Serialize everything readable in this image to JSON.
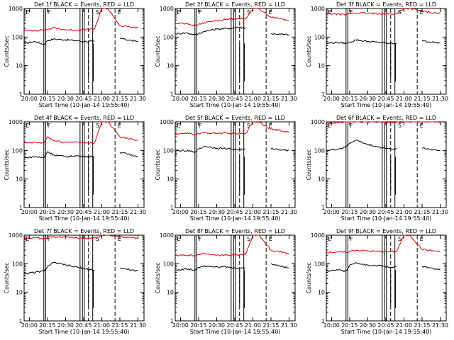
{
  "figure": {
    "start_time_label": "Start Time (10-Jan-14 19:55:40)",
    "ylabel": "Counts/sec"
  },
  "chart_data": [
    {
      "type": "line",
      "title": "Det 1f BLACK = Events, RED = LLD",
      "xlabel": "Start Time (10-Jan-14 19:55:40)",
      "ylabel": "Counts/sec",
      "yscale": "log",
      "ylim": [
        1,
        1000
      ],
      "x_ticks": [
        "20:00",
        "20:15",
        "20:30",
        "20:45",
        "21:00",
        "21:15",
        "21:30"
      ],
      "y_ticks": [
        "1",
        "10",
        "100",
        "1000"
      ],
      "x": [
        "19:56",
        "20:05",
        "20:12",
        "20:15",
        "20:20",
        "20:30",
        "20:40",
        "20:44",
        "20:47",
        "20:54",
        "21:00",
        "21:05",
        "21:15",
        "21:25",
        "21:30"
      ],
      "series": [
        {
          "name": "Events",
          "color": "#000000",
          "values": [
            60,
            70,
            55,
            75,
            85,
            80,
            75,
            70,
            70,
            70,
            null,
            null,
            90,
            75,
            70
          ]
        },
        {
          "name": "LLD",
          "color": "#e00000",
          "values": [
            170,
            170,
            180,
            185,
            210,
            180,
            175,
            180,
            185,
            190,
            1000,
            1000,
            250,
            220,
            210
          ]
        }
      ],
      "markers": [
        "E",
        "F",
        "S",
        "E"
      ]
    },
    {
      "type": "line",
      "title": "Det 2f BLACK = Events, RED = LLD",
      "xlabel": "Start Time (10-Jan-14 19:55:40)",
      "ylabel": "Counts/sec",
      "yscale": "log",
      "ylim": [
        1,
        1000
      ],
      "x_ticks": [
        "20:00",
        "20:15",
        "20:30",
        "20:45",
        "21:00",
        "21:15",
        "21:30"
      ],
      "y_ticks": [
        "1",
        "10",
        "100",
        "1000"
      ],
      "x": [
        "19:56",
        "20:05",
        "20:12",
        "20:15",
        "20:20",
        "20:30",
        "20:40",
        "20:44",
        "20:47",
        "20:54",
        "21:00",
        "21:05",
        "21:15",
        "21:25",
        "21:30"
      ],
      "series": [
        {
          "name": "Events",
          "color": "#000000",
          "values": [
            130,
            140,
            120,
            130,
            160,
            190,
            200,
            210,
            220,
            210,
            null,
            null,
            130,
            125,
            120
          ]
        },
        {
          "name": "LLD",
          "color": "#e00000",
          "values": [
            300,
            300,
            250,
            270,
            320,
            380,
            420,
            440,
            450,
            430,
            1000,
            1000,
            500,
            420,
            380
          ]
        }
      ],
      "markers": [
        "E",
        "F",
        "S",
        "E"
      ]
    },
    {
      "type": "line",
      "title": "Det 3f BLACK = Events, RED = LLD",
      "xlabel": "Start Time (10-Jan-14 19:55:40)",
      "ylabel": "Counts/sec",
      "yscale": "log",
      "ylim": [
        1,
        1000
      ],
      "x_ticks": [
        "20:00",
        "20:15",
        "20:30",
        "20:45",
        "21:00",
        "21:15",
        "21:30"
      ],
      "y_ticks": [
        "1",
        "10",
        "100",
        "1000"
      ],
      "x": [
        "19:56",
        "20:05",
        "20:12",
        "20:15",
        "20:20",
        "20:30",
        "20:40",
        "20:44",
        "20:47",
        "20:54",
        "21:00",
        "21:05",
        "21:15",
        "21:25",
        "21:30"
      ],
      "series": [
        {
          "name": "Events",
          "color": "#000000",
          "values": [
            60,
            65,
            60,
            65,
            80,
            70,
            65,
            62,
            60,
            60,
            null,
            null,
            75,
            65,
            62
          ]
        },
        {
          "name": "LLD",
          "color": "#e00000",
          "values": [
            650,
            640,
            600,
            650,
            700,
            680,
            660,
            650,
            640,
            650,
            1000,
            1000,
            800,
            700,
            680
          ]
        }
      ],
      "markers": [
        "E",
        "F",
        "S",
        "E"
      ]
    },
    {
      "type": "line",
      "title": "Det 4f BLACK = Events, RED = LLD",
      "xlabel": "Start Time (10-Jan-14 19:55:40)",
      "ylabel": "Counts/sec",
      "yscale": "log",
      "ylim": [
        1,
        1000
      ],
      "x_ticks": [
        "20:00",
        "20:15",
        "20:30",
        "20:45",
        "21:00",
        "21:15",
        "21:30"
      ],
      "y_ticks": [
        "1",
        "10",
        "100",
        "1000"
      ],
      "x": [
        "19:56",
        "20:05",
        "20:12",
        "20:15",
        "20:20",
        "20:30",
        "20:40",
        "20:44",
        "20:47",
        "20:54",
        "21:00",
        "21:05",
        "21:15",
        "21:25",
        "21:30"
      ],
      "series": [
        {
          "name": "Events",
          "color": "#000000",
          "values": [
            55,
            60,
            55,
            90,
            70,
            60,
            65,
            60,
            62,
            60,
            null,
            null,
            85,
            70,
            60
          ]
        },
        {
          "name": "LLD",
          "color": "#e00000",
          "values": [
            180,
            190,
            180,
            300,
            220,
            190,
            200,
            190,
            180,
            185,
            1000,
            1000,
            300,
            250,
            230
          ]
        }
      ],
      "markers": [
        "E",
        "F",
        "S",
        "E"
      ]
    },
    {
      "type": "line",
      "title": "Det 5f BLACK = Events, RED = LLD",
      "xlabel": "Start Time (10-Jan-14 19:55:40)",
      "ylabel": "Counts/sec",
      "yscale": "log",
      "ylim": [
        1,
        1000
      ],
      "x_ticks": [
        "20:00",
        "20:15",
        "20:30",
        "20:45",
        "21:00",
        "21:15",
        "21:30"
      ],
      "y_ticks": [
        "1",
        "10",
        "100",
        "1000"
      ],
      "x": [
        "19:56",
        "20:05",
        "20:12",
        "20:15",
        "20:20",
        "20:30",
        "20:40",
        "20:44",
        "20:47",
        "20:54",
        "21:00",
        "21:05",
        "21:15",
        "21:25",
        "21:30"
      ],
      "series": [
        {
          "name": "Events",
          "color": "#000000",
          "values": [
            100,
            95,
            90,
            110,
            140,
            120,
            115,
            110,
            105,
            110,
            null,
            null,
            115,
            105,
            100
          ]
        },
        {
          "name": "LLD",
          "color": "#e00000",
          "values": [
            380,
            390,
            370,
            390,
            410,
            400,
            390,
            385,
            380,
            390,
            1000,
            1000,
            560,
            470,
            440
          ]
        }
      ],
      "markers": [
        "E",
        "F",
        "S",
        "E"
      ]
    },
    {
      "type": "line",
      "title": "Det 6f BLACK = Events, RED = LLD",
      "xlabel": "Start Time (10-Jan-14 19:55:40)",
      "ylabel": "Counts/sec",
      "yscale": "log",
      "ylim": [
        1,
        1000
      ],
      "x_ticks": [
        "20:00",
        "20:15",
        "20:30",
        "20:45",
        "21:00",
        "21:15",
        "21:30"
      ],
      "y_ticks": [
        "1",
        "10",
        "100",
        "1000"
      ],
      "x": [
        "19:56",
        "20:05",
        "20:12",
        "20:15",
        "20:20",
        "20:30",
        "20:40",
        "20:44",
        "20:47",
        "20:54",
        "21:00",
        "21:05",
        "21:15",
        "21:25",
        "21:30"
      ],
      "series": [
        {
          "name": "Events",
          "color": "#000000",
          "values": [
            100,
            110,
            130,
            180,
            230,
            160,
            130,
            120,
            115,
            110,
            null,
            null,
            120,
            105,
            100
          ]
        },
        {
          "name": "LLD",
          "color": "#e00000",
          "values": [
            900,
            950,
            1000,
            1000,
            1000,
            1000,
            1000,
            1000,
            980,
            960,
            1000,
            1000,
            1000,
            1000,
            1000
          ]
        }
      ],
      "markers": [
        "E",
        "F",
        "S",
        "E"
      ]
    },
    {
      "type": "line",
      "title": "Det 7f BLACK = Events, RED = LLD",
      "xlabel": "Start Time (10-Jan-14 19:55:40)",
      "ylabel": "Counts/sec",
      "yscale": "log",
      "ylim": [
        1,
        1000
      ],
      "x_ticks": [
        "20:00",
        "20:15",
        "20:30",
        "20:45",
        "21:00",
        "21:15",
        "21:30"
      ],
      "y_ticks": [
        "1",
        "10",
        "100",
        "1000"
      ],
      "x": [
        "19:56",
        "20:05",
        "20:12",
        "20:15",
        "20:20",
        "20:30",
        "20:40",
        "20:44",
        "20:47",
        "20:54",
        "21:00",
        "21:05",
        "21:15",
        "21:25",
        "21:30"
      ],
      "series": [
        {
          "name": "Events",
          "color": "#000000",
          "values": [
            45,
            50,
            55,
            80,
            110,
            90,
            75,
            70,
            65,
            60,
            null,
            null,
            70,
            60,
            55
          ]
        },
        {
          "name": "LLD",
          "color": "#e00000",
          "values": [
            750,
            800,
            750,
            850,
            900,
            850,
            800,
            780,
            760,
            800,
            1000,
            1000,
            900,
            820,
            780
          ]
        }
      ],
      "markers": [
        "E",
        "F",
        "S",
        "E"
      ]
    },
    {
      "type": "line",
      "title": "Det 8f BLACK = Events, RED = LLD",
      "xlabel": "Start Time (10-Jan-14 19:55:40)",
      "ylabel": "Counts/sec",
      "yscale": "log",
      "ylim": [
        1,
        1000
      ],
      "x_ticks": [
        "20:00",
        "20:15",
        "20:30",
        "20:45",
        "21:00",
        "21:15",
        "21:30"
      ],
      "y_ticks": [
        "1",
        "10",
        "100",
        "1000"
      ],
      "x": [
        "19:56",
        "20:05",
        "20:12",
        "20:15",
        "20:20",
        "20:30",
        "20:40",
        "20:44",
        "20:47",
        "20:54",
        "21:00",
        "21:05",
        "21:15",
        "21:25",
        "21:30"
      ],
      "series": [
        {
          "name": "Events",
          "color": "#000000",
          "values": [
            60,
            65,
            60,
            75,
            85,
            80,
            75,
            70,
            70,
            70,
            null,
            null,
            100,
            80,
            70
          ]
        },
        {
          "name": "LLD",
          "color": "#e00000",
          "values": [
            200,
            195,
            190,
            210,
            230,
            200,
            195,
            200,
            205,
            210,
            1000,
            1000,
            300,
            250,
            230
          ]
        }
      ],
      "markers": [
        "E",
        "F",
        "S",
        "E"
      ]
    },
    {
      "type": "line",
      "title": "Det 9f BLACK = Events, RED = LLD",
      "xlabel": "Start Time (10-Jan-14 19:55:40)",
      "ylabel": "Counts/sec",
      "yscale": "log",
      "ylim": [
        1,
        1000
      ],
      "x_ticks": [
        "20:00",
        "20:15",
        "20:30",
        "20:45",
        "21:00",
        "21:15",
        "21:30"
      ],
      "y_ticks": [
        "1",
        "10",
        "100",
        "1000"
      ],
      "x": [
        "19:56",
        "20:05",
        "20:12",
        "20:15",
        "20:20",
        "20:30",
        "20:40",
        "20:44",
        "20:47",
        "20:54",
        "21:00",
        "21:05",
        "21:15",
        "21:25",
        "21:30"
      ],
      "series": [
        {
          "name": "Events",
          "color": "#000000",
          "values": [
            55,
            60,
            55,
            90,
            110,
            90,
            85,
            80,
            75,
            80,
            null,
            null,
            80,
            65,
            60
          ]
        },
        {
          "name": "LLD",
          "color": "#e00000",
          "values": [
            250,
            260,
            250,
            270,
            300,
            280,
            270,
            265,
            260,
            270,
            1000,
            1000,
            320,
            280,
            260
          ]
        }
      ],
      "markers": [
        "E",
        "F",
        "S",
        "E"
      ]
    }
  ]
}
